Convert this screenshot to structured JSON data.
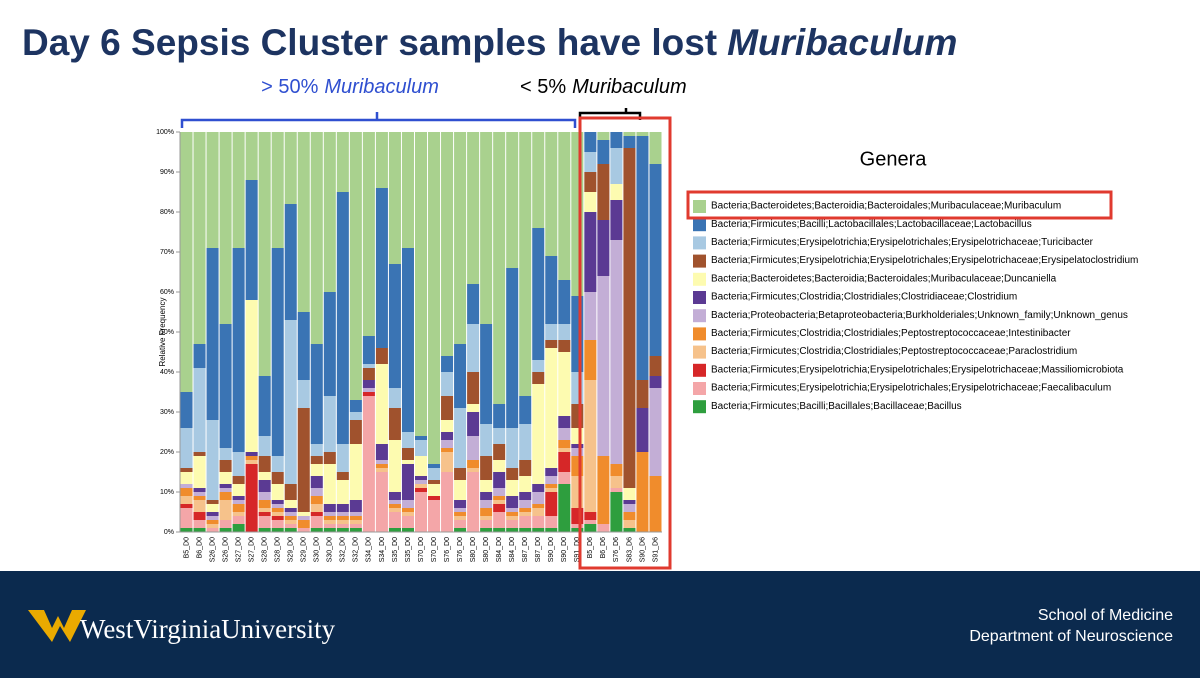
{
  "slide": {
    "title": "Day 6 Sepsis Cluster samples have lost",
    "title_emphasis": "Muribaculum",
    "annotation_left": {
      "text": "> 50%",
      "emphasis": "Muribaculum"
    },
    "annotation_right": {
      "text": "< 5%",
      "emphasis": "Muribaculum"
    },
    "footer": {
      "university": "WestVirginiaUniversity",
      "school": "School of Medicine",
      "department": "Department of Neuroscience"
    }
  },
  "chart_data": {
    "type": "stacked_bar",
    "ylabel": "Relative Frequency",
    "legend_title": "Genera",
    "categories": [
      "B5_D0",
      "B6_D0",
      "S26_D0",
      "S26_D0",
      "S27_D0",
      "S27_D0",
      "S28_D0",
      "S28_D0",
      "S29_D0",
      "S29_D0",
      "S30_D0",
      "S30_D0",
      "S32_D0",
      "S32_D0",
      "S34_D0",
      "S34_D0",
      "S35_D0",
      "S35_D0",
      "S70_D0",
      "S70_D0",
      "S76_D0",
      "S76_D0",
      "S80_D0",
      "S80_D0",
      "S84_D0",
      "S84_D0",
      "S87_D0",
      "S87_D0",
      "S90_D0",
      "S90_D0",
      "S91_D0",
      "B5_D6",
      "B6_D6",
      "S76_D6",
      "S83_D6",
      "S90_D6",
      "S91_D6"
    ],
    "ylim": [
      0,
      100
    ],
    "yticks": [
      {
        "value": 0,
        "label": "0%"
      },
      {
        "value": 10,
        "label": "10%"
      },
      {
        "value": 20,
        "label": "20%"
      },
      {
        "value": 30,
        "label": "30%"
      },
      {
        "value": 40,
        "label": "40%"
      },
      {
        "value": 50,
        "label": "50%"
      },
      {
        "value": 60,
        "label": "60%"
      },
      {
        "value": 70,
        "label": "70%"
      },
      {
        "value": 80,
        "label": "80%"
      },
      {
        "value": 90,
        "label": "90%"
      },
      {
        "value": 100,
        "label": "100%"
      }
    ],
    "series": [
      {
        "name": "Bacteria;Bacteroidetes;Bacteroidia;Bacteroidales;Muribaculaceae;Muribaculum",
        "color": "#a9d18e",
        "values": [
          65,
          53,
          29,
          48,
          29,
          12,
          61,
          29,
          18,
          45,
          53,
          40,
          15,
          67,
          51,
          14,
          33,
          29,
          76,
          83,
          56,
          53,
          38,
          48,
          68,
          34,
          66,
          24,
          31,
          37,
          41,
          0,
          2,
          0,
          1,
          1,
          8
        ]
      },
      {
        "name": "Bacteria;Firmicutes;Bacilli;Lactobacillales;Lactobacillaceae;Lactobacillus",
        "color": "#3a74b4",
        "values": [
          9,
          6,
          43,
          31,
          51,
          30,
          15,
          52,
          29,
          17,
          25,
          26,
          63,
          3,
          7,
          40,
          31,
          46,
          1,
          1,
          4,
          16,
          10,
          25,
          6,
          40,
          7,
          33,
          17,
          11,
          19,
          5,
          6,
          4,
          3,
          61,
          48
        ]
      },
      {
        "name": "Bacteria;Firmicutes;Erysipelotrichia;Erysipelotrichales;Erysipelotrichaceae;Turicibacter",
        "color": "#a8c9e2",
        "values": [
          10,
          21,
          20,
          3,
          6,
          0,
          5,
          4,
          41,
          7,
          3,
          14,
          7,
          2,
          1,
          0,
          5,
          4,
          4,
          3,
          6,
          15,
          12,
          8,
          4,
          10,
          9,
          3,
          4,
          4,
          8,
          5,
          0,
          9,
          0,
          0,
          0
        ]
      },
      {
        "name": "Bacteria;Firmicutes;Erysipelotrichia;Erysipelotrichales;Erysipelotrichaceae;Erysipelatoclostridium",
        "color": "#a0522d",
        "values": [
          1,
          1,
          1,
          3,
          2,
          0,
          4,
          3,
          4,
          26,
          2,
          3,
          2,
          6,
          3,
          4,
          8,
          3,
          0,
          1,
          6,
          3,
          8,
          6,
          4,
          3,
          4,
          3,
          2,
          3,
          6,
          5,
          14,
          0,
          85,
          7,
          5
        ]
      },
      {
        "name": "Bacteria;Bacteroidetes;Bacteroidia;Bacteroidales;Muribaculaceae;Duncaniella",
        "color": "#fdfbb0",
        "values": [
          3,
          8,
          2,
          3,
          3,
          38,
          2,
          4,
          2,
          1,
          3,
          10,
          6,
          14,
          0,
          20,
          13,
          1,
          5,
          3,
          3,
          5,
          2,
          3,
          3,
          4,
          4,
          25,
          30,
          16,
          4,
          5,
          0,
          4,
          3,
          0,
          0
        ]
      },
      {
        "name": "Bacteria;Firmicutes;Clostridia;Clostridiales;Clostridiaceae;Clostridium",
        "color": "#5b3a93",
        "values": [
          0,
          1,
          1,
          1,
          1,
          1,
          3,
          1,
          1,
          0,
          3,
          2,
          2,
          3,
          2,
          4,
          2,
          9,
          1,
          0,
          2,
          2,
          6,
          2,
          4,
          3,
          2,
          2,
          2,
          3,
          1,
          20,
          14,
          10,
          1,
          11,
          3
        ]
      },
      {
        "name": "Bacteria;Proteobacteria;Betaproteobacteria;Burkholderiales;Unknown_family;Unknown_genus",
        "color": "#c3aed6",
        "values": [
          1,
          1,
          1,
          1,
          1,
          0,
          2,
          1,
          1,
          1,
          2,
          1,
          1,
          1,
          1,
          1,
          1,
          2,
          1,
          0,
          2,
          1,
          6,
          2,
          2,
          1,
          2,
          3,
          2,
          3,
          2,
          12,
          45,
          56,
          2,
          0,
          22
        ]
      },
      {
        "name": "Bacteria;Firmicutes;Clostridia;Clostridiales;Peptostreptococcaceae;Intestinibacter",
        "color": "#f08c2c",
        "values": [
          2,
          1,
          1,
          2,
          2,
          1,
          2,
          1,
          1,
          2,
          2,
          1,
          1,
          1,
          0,
          1,
          1,
          1,
          0,
          0,
          1,
          1,
          2,
          2,
          1,
          1,
          1,
          1,
          1,
          2,
          5,
          10,
          17,
          3,
          2,
          20,
          14
        ]
      },
      {
        "name": "Bacteria;Firmicutes;Clostridia;Clostridiales;Peptostreptococcaceae;Paraclostridium",
        "color": "#f6c28b",
        "values": [
          2,
          3,
          1,
          5,
          1,
          1,
          1,
          1,
          1,
          0,
          2,
          1,
          1,
          1,
          0,
          1,
          1,
          1,
          1,
          0,
          5,
          1,
          1,
          1,
          1,
          1,
          1,
          2,
          1,
          1,
          8,
          33,
          0,
          3,
          2,
          0,
          0
        ]
      },
      {
        "name": "Bacteria;Firmicutes;Erysipelotrichia;Erysipelotrichales;Erysipelotrichaceae;Massiliomicrobiota",
        "color": "#d62728",
        "values": [
          1,
          2,
          0,
          0,
          0,
          17,
          1,
          1,
          0,
          0,
          1,
          0,
          0,
          0,
          1,
          0,
          0,
          0,
          1,
          1,
          0,
          0,
          0,
          0,
          2,
          0,
          0,
          0,
          6,
          5,
          4,
          2,
          0,
          0,
          0,
          0,
          0
        ]
      },
      {
        "name": "Bacteria;Firmicutes;Erysipelotrichia;Erysipelotrichales;Erysipelotrichaceae;Faecalibaculum",
        "color": "#f4a6a8",
        "values": [
          5,
          2,
          1,
          2,
          2,
          0,
          3,
          2,
          1,
          1,
          3,
          1,
          1,
          1,
          34,
          15,
          4,
          3,
          10,
          8,
          15,
          2,
          15,
          2,
          4,
          2,
          3,
          3,
          3,
          3,
          1,
          1,
          2,
          1,
          0,
          0,
          0
        ]
      },
      {
        "name": "Bacteria;Firmicutes;Bacilli;Bacillales;Bacillaceae;Bacillus",
        "color": "#2e9e3e",
        "values": [
          1,
          1,
          0,
          1,
          2,
          0,
          1,
          1,
          1,
          0,
          1,
          1,
          1,
          1,
          0,
          0,
          1,
          1,
          0,
          0,
          0,
          1,
          0,
          1,
          1,
          1,
          1,
          1,
          1,
          12,
          1,
          2,
          0,
          10,
          1,
          0,
          0
        ]
      }
    ]
  }
}
